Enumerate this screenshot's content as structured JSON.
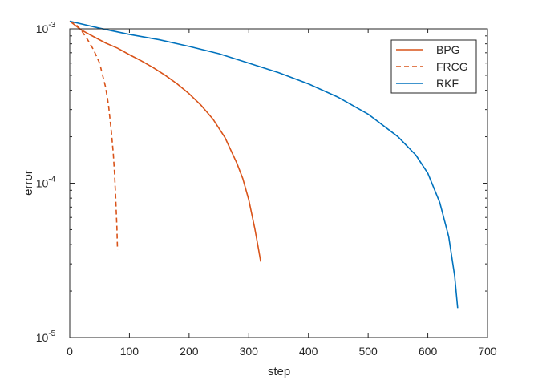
{
  "chart_data": {
    "type": "line",
    "title": "",
    "xlabel": "step",
    "ylabel": "error",
    "xlim": [
      0,
      700
    ],
    "ylim": [
      1e-05,
      0.001
    ],
    "yscale": "log",
    "grid": false,
    "legend_position": "top-right",
    "x_ticks": [
      0,
      100,
      200,
      300,
      400,
      500,
      600,
      700
    ],
    "x_tick_labels": [
      "0",
      "100",
      "200",
      "300",
      "400",
      "500",
      "600",
      "700"
    ],
    "y_ticks": [
      1e-05,
      0.0001,
      0.001
    ],
    "y_tick_labels": [
      {
        "base": "10",
        "exp": "-5"
      },
      {
        "base": "10",
        "exp": "-4"
      },
      {
        "base": "10",
        "exp": "-3"
      }
    ],
    "series": [
      {
        "name": "BPG",
        "color": "#D95319",
        "dash": "solid",
        "x": [
          0,
          20,
          40,
          60,
          80,
          100,
          120,
          140,
          160,
          180,
          200,
          220,
          240,
          260,
          280,
          290,
          300,
          310,
          315,
          320
        ],
        "y": [
          0.00112,
          0.00098,
          0.00089,
          0.00081,
          0.00075,
          0.00068,
          0.00062,
          0.00056,
          0.0005,
          0.00044,
          0.00038,
          0.00032,
          0.00026,
          0.000198,
          0.000135,
          0.000107,
          7.8e-05,
          5.1e-05,
          4e-05,
          3.1e-05
        ]
      },
      {
        "name": "FRCG",
        "color": "#D95319",
        "dash": "dashed",
        "x": [
          0,
          10,
          20,
          30,
          40,
          50,
          60,
          65,
          70,
          73,
          75,
          77,
          79,
          80
        ],
        "y": [
          0.00112,
          0.00107,
          0.00097,
          0.00085,
          0.00073,
          0.0006,
          0.00042,
          0.00032,
          0.00021,
          0.000155,
          0.000117,
          8e-05,
          5.2e-05,
          3.7e-05
        ]
      },
      {
        "name": "RKF",
        "color": "#0072BD",
        "dash": "solid",
        "x": [
          0,
          50,
          100,
          150,
          200,
          250,
          300,
          350,
          400,
          450,
          500,
          550,
          580,
          600,
          620,
          635,
          645,
          650
        ],
        "y": [
          0.00112,
          0.00101,
          0.00092,
          0.00085,
          0.00077,
          0.00069,
          0.0006,
          0.00052,
          0.00044,
          0.00036,
          0.00028,
          0.0002,
          0.000152,
          0.000116,
          7.5e-05,
          4.5e-05,
          2.5e-05,
          1.55e-05
        ]
      }
    ]
  }
}
